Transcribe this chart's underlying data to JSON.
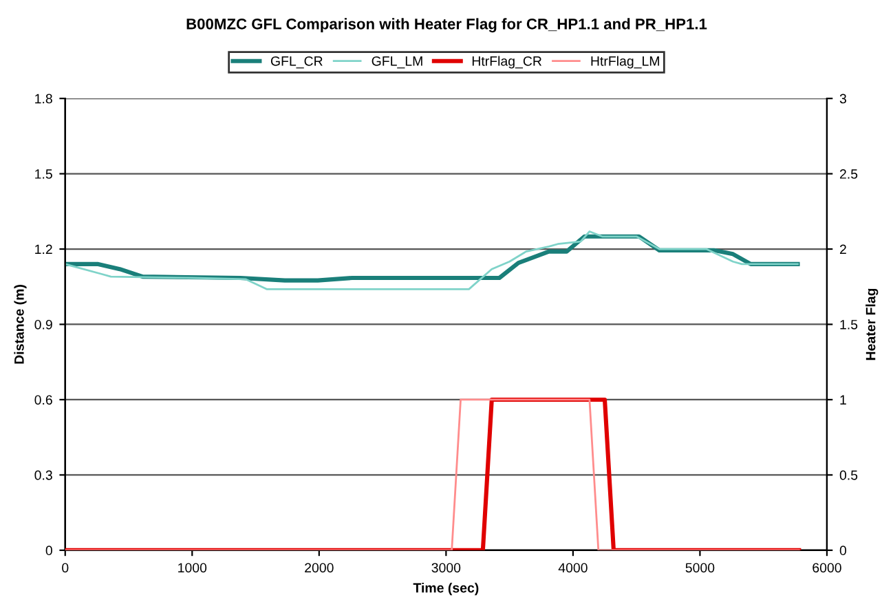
{
  "chart_data": {
    "type": "line",
    "title": "B00MZC GFL Comparison with Heater Flag for CR_HP1.1 and PR_HP1.1",
    "xlabel": "Time (sec)",
    "ylabel": "Distance (m)",
    "y2label": "Heater Flag",
    "xlim": [
      0,
      6000
    ],
    "xticks": [
      0,
      1000,
      2000,
      3000,
      4000,
      5000,
      6000
    ],
    "ylim": [
      0,
      1.8
    ],
    "yticks": [
      0,
      0.3,
      0.6,
      0.9,
      1.2,
      1.5,
      1.8
    ],
    "y2lim": [
      0,
      3
    ],
    "y2ticks": [
      0,
      0.5,
      1,
      1.5,
      2,
      2.5,
      3
    ],
    "grid": "y",
    "legend": "top",
    "marker": "none",
    "line_style": "solid",
    "series": [
      {
        "name": "GFL_CR",
        "color": "#1a7f7a",
        "x": [
          0,
          260,
          430,
          610,
          1380,
          1730,
          1990,
          2260,
          3420,
          3570,
          3810,
          3950,
          4090,
          4520,
          4680,
          5110,
          5260,
          5400,
          5770
        ],
        "values": [
          1.14,
          1.14,
          1.12,
          1.09,
          1.085,
          1.075,
          1.075,
          1.085,
          1.085,
          1.145,
          1.19,
          1.19,
          1.25,
          1.25,
          1.195,
          1.195,
          1.18,
          1.14,
          1.14
        ]
      },
      {
        "name": "GFL_LM",
        "color": "#7fd3c9",
        "x": [
          0,
          290,
          360,
          1000,
          1420,
          1590,
          3180,
          3360,
          3500,
          3630,
          3810,
          3880,
          4060,
          4130,
          4230,
          4500,
          4680,
          5050,
          5260,
          5330,
          5770
        ],
        "values": [
          1.14,
          1.1,
          1.09,
          1.085,
          1.08,
          1.04,
          1.04,
          1.12,
          1.15,
          1.19,
          1.21,
          1.22,
          1.23,
          1.27,
          1.25,
          1.25,
          1.2,
          1.2,
          1.15,
          1.14,
          1.14
        ]
      },
      {
        "name": "HtrFlag_CR",
        "color": "#e00000",
        "axis": "y2",
        "x": [
          0,
          3290,
          3360,
          4250,
          4320,
          5780
        ],
        "values": [
          0,
          0,
          1,
          1,
          0,
          0
        ]
      },
      {
        "name": "HtrFlag_LM",
        "color": "#ff8c8c",
        "axis": "y2",
        "x": [
          0,
          3045,
          3115,
          4130,
          4200,
          5780
        ],
        "values": [
          0,
          0,
          1,
          1,
          0,
          0
        ]
      }
    ]
  }
}
